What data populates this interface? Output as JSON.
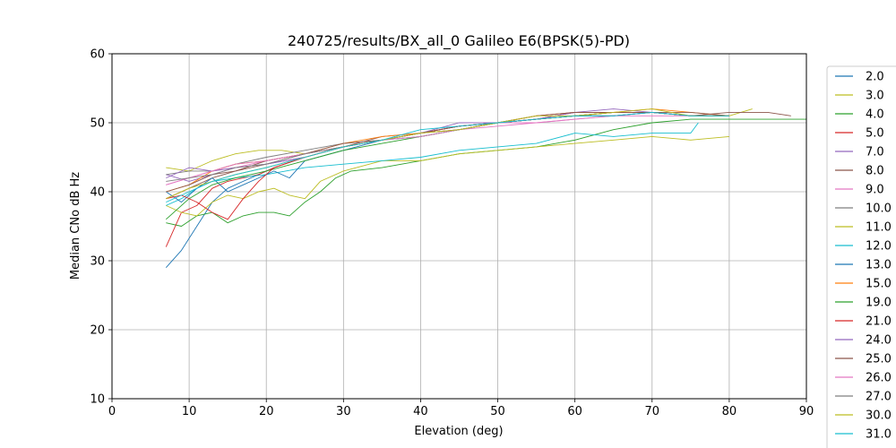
{
  "chart_data": {
    "type": "line",
    "title": "240725/results/BX_all_0 Galileo E6(BPSK(5)-PD)",
    "xlabel": "Elevation (deg)",
    "ylabel": "Median CNo dB Hz",
    "xlim": [
      0,
      90
    ],
    "ylim": [
      10,
      60
    ],
    "xticks": [
      0,
      10,
      20,
      30,
      40,
      50,
      60,
      70,
      80,
      90
    ],
    "yticks": [
      10,
      20,
      30,
      40,
      50,
      60
    ],
    "grid": true,
    "legend_position": "right, outside plot",
    "series": [
      {
        "name": "2.0",
        "color": "#1f77b4",
        "x": [
          7,
          9,
          11,
          13,
          15,
          17,
          19,
          21,
          25,
          30,
          35,
          40,
          45,
          50,
          55,
          60,
          65,
          70,
          75,
          80
        ],
        "y": [
          29,
          31.5,
          35,
          38.5,
          40.5,
          41.5,
          42.5,
          43.5,
          45,
          46.5,
          47.5,
          48.5,
          49.5,
          50,
          50.5,
          51,
          51,
          51.5,
          51,
          51
        ]
      },
      {
        "name": "3.0",
        "color": "#bcbd22",
        "x": [
          7,
          10,
          13,
          16,
          19,
          22,
          25,
          30,
          35,
          40,
          45,
          50,
          55,
          60,
          65,
          70,
          75,
          80,
          83
        ],
        "y": [
          43.5,
          43,
          44.5,
          45.5,
          46,
          46,
          45.5,
          46.5,
          47.5,
          48.5,
          49,
          50,
          50.5,
          51,
          51.5,
          51.5,
          51,
          51,
          52
        ]
      },
      {
        "name": "4.0",
        "color": "#2ca02c",
        "x": [
          7,
          9,
          11,
          13,
          15,
          17,
          19,
          21,
          23,
          25,
          27,
          29,
          31,
          35,
          40,
          45,
          50,
          55,
          60,
          65,
          70,
          75,
          80,
          85,
          90
        ],
        "y": [
          35.5,
          35,
          36.5,
          37,
          35.5,
          36.5,
          37,
          37,
          36.5,
          38.5,
          40,
          42,
          43,
          43.5,
          44.5,
          45.5,
          46,
          46.5,
          47.5,
          49,
          50,
          50.5,
          50.5,
          50.5,
          50.5
        ]
      },
      {
        "name": "5.0",
        "color": "#d62728",
        "x": [
          7,
          9,
          11,
          13,
          15,
          17,
          19,
          21,
          25,
          30,
          35,
          40,
          45,
          50,
          55,
          60,
          65,
          70,
          75,
          80
        ],
        "y": [
          32,
          37,
          38,
          40.5,
          41.5,
          42,
          42.5,
          43.5,
          45,
          46.5,
          47.5,
          48.5,
          49.5,
          50,
          50.5,
          51,
          51.5,
          51.5,
          51,
          51
        ]
      },
      {
        "name": "7.0",
        "color": "#9467bd",
        "x": [
          7,
          10,
          13,
          16,
          20,
          25,
          30,
          35,
          40,
          45,
          50,
          55,
          60,
          65,
          70,
          75,
          80
        ],
        "y": [
          42.5,
          41.5,
          42.5,
          43.5,
          44,
          45,
          46.5,
          47.5,
          48.5,
          49.5,
          50,
          51,
          51.5,
          51.5,
          51.5,
          51,
          51
        ]
      },
      {
        "name": "8.0",
        "color": "#8c564b",
        "x": [
          7,
          10,
          13,
          16,
          20,
          25,
          30,
          35,
          40,
          45,
          50,
          55,
          60,
          65,
          70,
          75,
          80,
          85,
          88
        ],
        "y": [
          39,
          40.5,
          42,
          43,
          44,
          45.5,
          46.5,
          48,
          48.5,
          49.5,
          50,
          50.5,
          51,
          51.5,
          51.5,
          51,
          51.5,
          51.5,
          51
        ]
      },
      {
        "name": "9.0",
        "color": "#e377c2",
        "x": [
          7,
          10,
          13,
          16,
          20,
          25,
          30,
          35,
          40,
          45,
          50,
          55,
          60,
          65,
          70,
          75,
          80
        ],
        "y": [
          41,
          42,
          43,
          43.5,
          44.5,
          45.5,
          46.5,
          47.5,
          48.5,
          49,
          49.5,
          50,
          50.5,
          51,
          51.5,
          51,
          51
        ]
      },
      {
        "name": "10.0",
        "color": "#7f7f7f",
        "x": [
          7,
          10,
          13,
          16,
          20,
          25,
          30,
          35,
          40,
          45,
          50,
          55,
          60,
          65,
          70,
          75,
          80
        ],
        "y": [
          42.5,
          43,
          43,
          44,
          45,
          46,
          47,
          47.5,
          48,
          49,
          50,
          50.5,
          51.5,
          51.5,
          51.5,
          51,
          51
        ]
      },
      {
        "name": "11.0",
        "color": "#bcbd22",
        "x": [
          7,
          9,
          11,
          13,
          15,
          17,
          19,
          21,
          23,
          25,
          27,
          30,
          35,
          40,
          45,
          50,
          55,
          60,
          65,
          70,
          75,
          80
        ],
        "y": [
          38,
          37,
          36.5,
          38.5,
          39.5,
          39,
          40,
          40.5,
          39.5,
          39,
          41.5,
          43,
          44.5,
          44.5,
          45.5,
          46,
          46.5,
          47,
          47.5,
          48,
          47.5,
          48
        ]
      },
      {
        "name": "12.0",
        "color": "#17becf",
        "x": [
          7,
          9,
          11,
          13,
          16,
          20,
          25,
          30,
          35,
          40,
          45,
          50,
          55,
          60,
          65,
          70,
          75,
          76
        ],
        "y": [
          38,
          39,
          40.5,
          41.5,
          42,
          42.5,
          43.5,
          44,
          44.5,
          45,
          46,
          46.5,
          47,
          48.5,
          48,
          48.5,
          48.5,
          50
        ]
      },
      {
        "name": "13.0",
        "color": "#1f77b4",
        "x": [
          7,
          9,
          11,
          13,
          15,
          17,
          19,
          21,
          23,
          25,
          30,
          35,
          40,
          45,
          50,
          55,
          60,
          65,
          70,
          75,
          80
        ],
        "y": [
          40,
          38.5,
          40.5,
          42,
          40,
          41,
          42,
          43,
          42,
          44.5,
          46,
          47.5,
          48,
          49,
          50,
          50.5,
          51,
          51,
          51.5,
          51,
          51
        ]
      },
      {
        "name": "15.0",
        "color": "#ff7f0e",
        "x": [
          7,
          10,
          13,
          16,
          20,
          25,
          30,
          35,
          40,
          45,
          50,
          55,
          60,
          65,
          70,
          75,
          80
        ],
        "y": [
          40,
          41,
          43,
          44,
          44.5,
          45.5,
          47,
          48,
          48.5,
          49,
          50,
          51,
          51.5,
          51.5,
          52,
          51.5,
          51
        ]
      },
      {
        "name": "19.0",
        "color": "#2ca02c",
        "x": [
          7,
          10,
          13,
          16,
          20,
          25,
          30,
          35,
          40,
          45,
          50,
          55,
          60,
          65,
          70,
          75,
          80
        ],
        "y": [
          36,
          39,
          41,
          42,
          43,
          44.5,
          46,
          47,
          48,
          49,
          50,
          50.5,
          51,
          51.5,
          51.5,
          51,
          51
        ]
      },
      {
        "name": "21.0",
        "color": "#d62728",
        "x": [
          7,
          9,
          11,
          13,
          15,
          17,
          19,
          21,
          25,
          30,
          35,
          40,
          45,
          50,
          55,
          60,
          65,
          70,
          75,
          80
        ],
        "y": [
          39,
          39.5,
          38.5,
          37,
          36,
          39,
          41.5,
          43.5,
          45,
          46.5,
          47.5,
          48.5,
          49.5,
          50,
          50.5,
          51.5,
          51.5,
          51.5,
          51,
          51
        ]
      },
      {
        "name": "24.0",
        "color": "#9467bd",
        "x": [
          7,
          10,
          13,
          16,
          20,
          25,
          30,
          35,
          40,
          45,
          50,
          55,
          60,
          65,
          70,
          75,
          80
        ],
        "y": [
          42,
          43.5,
          43,
          43.5,
          44,
          45,
          46.5,
          47.5,
          48.5,
          50,
          50,
          50.5,
          51.5,
          52,
          51.5,
          51,
          51
        ]
      },
      {
        "name": "25.0",
        "color": "#8c564b",
        "x": [
          7,
          10,
          13,
          16,
          20,
          25,
          30,
          35,
          40,
          45,
          50,
          55,
          60,
          65,
          70,
          75,
          80
        ],
        "y": [
          40,
          41,
          42.5,
          43,
          44.5,
          45.5,
          47,
          47.5,
          48.5,
          49.5,
          50,
          51,
          51.5,
          51.5,
          51.5,
          51.5,
          51
        ]
      },
      {
        "name": "26.0",
        "color": "#e377c2",
        "x": [
          7,
          10,
          13,
          16,
          20,
          25,
          30,
          35,
          40,
          45,
          50,
          55,
          60,
          65,
          70,
          75,
          80
        ],
        "y": [
          41,
          42,
          43,
          44,
          44.5,
          45.5,
          46.5,
          47.5,
          48,
          49,
          50,
          50,
          50.5,
          51,
          51,
          51,
          51
        ]
      },
      {
        "name": "27.0",
        "color": "#7f7f7f",
        "x": [
          7,
          10,
          13,
          16,
          20,
          25,
          30,
          35,
          40,
          45,
          50,
          55,
          60,
          65,
          70,
          75,
          80
        ],
        "y": [
          41.5,
          42,
          42.5,
          43.5,
          44,
          45.5,
          46.5,
          47.5,
          48.5,
          49,
          50,
          50.5,
          51,
          51,
          51.5,
          51,
          51
        ]
      },
      {
        "name": "30.0",
        "color": "#bcbd22",
        "x": [
          7,
          10,
          13,
          16,
          20,
          25,
          30,
          35,
          40,
          45,
          50,
          55,
          60,
          65,
          70,
          75,
          80
        ],
        "y": [
          39,
          40.5,
          41.5,
          42.5,
          43.5,
          45,
          46.5,
          47.5,
          48.5,
          49,
          50,
          51,
          51,
          51.5,
          52,
          51,
          51
        ]
      },
      {
        "name": "31.0",
        "color": "#17becf",
        "x": [
          7,
          10,
          13,
          16,
          20,
          25,
          30,
          35,
          40,
          45,
          50,
          55,
          60,
          65,
          70,
          75,
          80
        ],
        "y": [
          38.5,
          40,
          41.5,
          42.5,
          43.5,
          45,
          46.5,
          47.5,
          49,
          49.5,
          50,
          50.5,
          51,
          51,
          51.5,
          51,
          51
        ]
      }
    ]
  }
}
